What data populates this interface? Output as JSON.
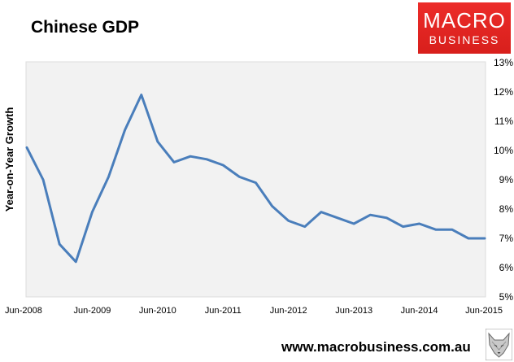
{
  "title": "Chinese GDP",
  "logo": {
    "line1": "MACRO",
    "line2": "BUSINESS",
    "color": "#e42421"
  },
  "footer": {
    "url": "www.macrobusiness.com.au",
    "mascot_icon": "fox-icon"
  },
  "chart_data": {
    "type": "line",
    "title": "Chinese GDP",
    "xlabel": "",
    "ylabel": "Year-on-Year Growth",
    "ylim": [
      5,
      13
    ],
    "y_ticks": [
      5,
      6,
      7,
      8,
      9,
      10,
      11,
      12,
      13
    ],
    "y_tick_labels": [
      "5%",
      "6%",
      "7%",
      "8%",
      "9%",
      "10%",
      "11%",
      "12%",
      "13%"
    ],
    "y_axis_side": "right",
    "x_tick_labels": [
      "Jun-2008",
      "Jun-2009",
      "Jun-2010",
      "Jun-2011",
      "Jun-2012",
      "Jun-2013",
      "Jun-2014",
      "Jun-2015"
    ],
    "x": [
      "Jun-2008",
      "Sep-2008",
      "Dec-2008",
      "Mar-2009",
      "Jun-2009",
      "Sep-2009",
      "Dec-2009",
      "Mar-2010",
      "Jun-2010",
      "Sep-2010",
      "Dec-2010",
      "Mar-2011",
      "Jun-2011",
      "Sep-2011",
      "Dec-2011",
      "Mar-2012",
      "Jun-2012",
      "Sep-2012",
      "Dec-2012",
      "Mar-2013",
      "Jun-2013",
      "Sep-2013",
      "Dec-2013",
      "Mar-2014",
      "Jun-2014",
      "Sep-2014",
      "Dec-2014",
      "Mar-2015",
      "Jun-2015"
    ],
    "series": [
      {
        "values": [
          10.1,
          9.0,
          6.8,
          6.2,
          7.9,
          9.1,
          10.7,
          11.9,
          10.3,
          9.6,
          9.8,
          9.7,
          9.5,
          9.1,
          8.9,
          8.1,
          7.6,
          7.4,
          7.9,
          7.7,
          7.5,
          7.8,
          7.7,
          7.4,
          7.5,
          7.3,
          7.3,
          7.0,
          7.0
        ],
        "color": "#4a7ebb"
      }
    ],
    "grid": false,
    "legend": "none",
    "plot_background": "#f2f2f2"
  }
}
